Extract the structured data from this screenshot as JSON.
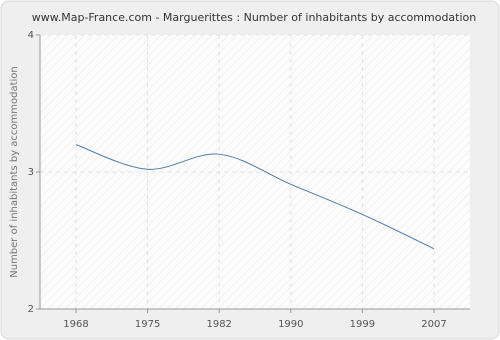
{
  "chart_data": {
    "type": "line",
    "title": "www.Map-France.com - Marguerittes : Number of inhabitants by accommodation",
    "y_label": "Number of inhabitants by accommodation",
    "categories": [
      "1968",
      "1975",
      "1982",
      "1990",
      "1999",
      "2007"
    ],
    "series": [
      {
        "name": "Number of inhabitants by accommodation",
        "color": "#4f7ca8",
        "values": [
          3.2,
          3.02,
          3.13,
          2.91,
          2.69,
          2.44
        ]
      }
    ],
    "ylim": [
      2,
      4
    ],
    "yticks": [
      2,
      3,
      4
    ],
    "grid": true,
    "smooth": true
  }
}
